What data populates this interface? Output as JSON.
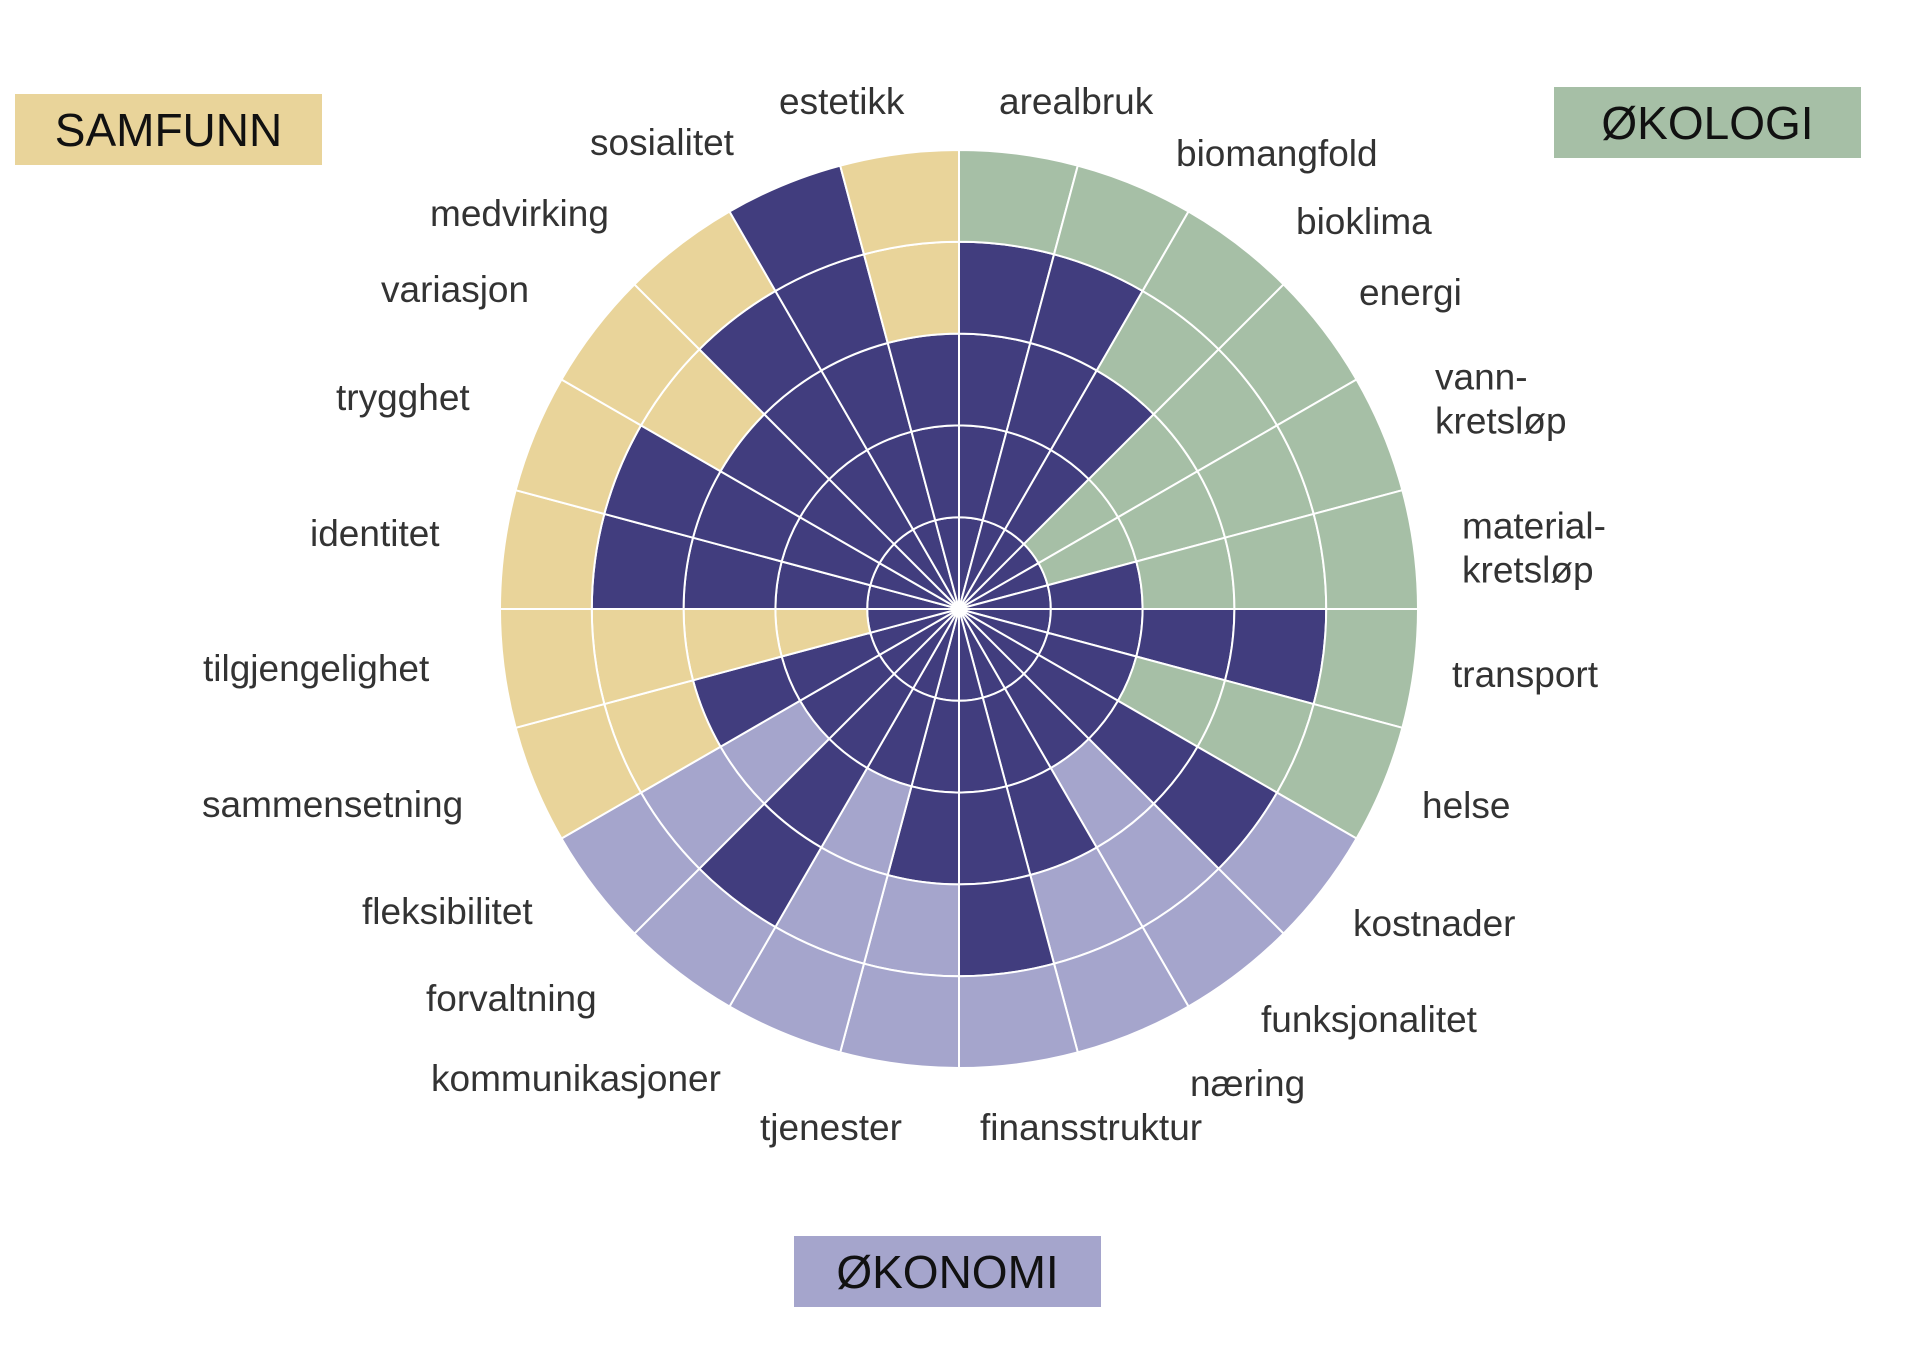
{
  "categories_boxes": {
    "society": {
      "label": "SAMFUNN",
      "color": "#e9d49a"
    },
    "ecology": {
      "label": "ØKOLOGI",
      "color": "#a6bfa6"
    },
    "economy": {
      "label": "ØKONOMI",
      "color": "#a5a5cc"
    }
  },
  "chart_data": {
    "type": "bar",
    "coordinate_system": "polar",
    "title": "",
    "max_level": 5,
    "levels": [
      1,
      2,
      3,
      4,
      5
    ],
    "grid": true,
    "fill_color": "#413d7e",
    "direction": "clockwise from top",
    "series": [
      {
        "group": "ecology",
        "items": [
          {
            "label": "arealbruk",
            "value": 4
          },
          {
            "label": "biomangfold",
            "value": 4
          },
          {
            "label": "bioklima",
            "value": 3
          },
          {
            "label": "energi",
            "value": 1
          },
          {
            "label": "vann-\nkretsløp",
            "value": 1
          },
          {
            "label": "material-\nkretsløp",
            "value": 2
          },
          {
            "label": "transport",
            "value": 4
          },
          {
            "label": "helse",
            "value": 2
          }
        ]
      },
      {
        "group": "economy",
        "items": [
          {
            "label": "kostnader",
            "value": 4
          },
          {
            "label": "funksjonalitet",
            "value": 2
          },
          {
            "label": "næring",
            "value": 3
          },
          {
            "label": "finansstruktur",
            "value": 4
          },
          {
            "label": "tjenester",
            "value": 3
          },
          {
            "label": "kommunikasjoner",
            "value": 2
          },
          {
            "label": "forvaltning",
            "value": 4
          },
          {
            "label": "fleksibilitet",
            "value": 2
          }
        ]
      },
      {
        "group": "society",
        "items": [
          {
            "label": "sammensetning",
            "value": 3
          },
          {
            "label": "tilgjengelighet",
            "value": 1
          },
          {
            "label": "identitet",
            "value": 4
          },
          {
            "label": "trygghet",
            "value": 4
          },
          {
            "label": "variasjon",
            "value": 3
          },
          {
            "label": "medvirking",
            "value": 4
          },
          {
            "label": "sosialitet",
            "value": 5
          },
          {
            "label": "estetikk",
            "value": 3
          }
        ]
      }
    ]
  }
}
